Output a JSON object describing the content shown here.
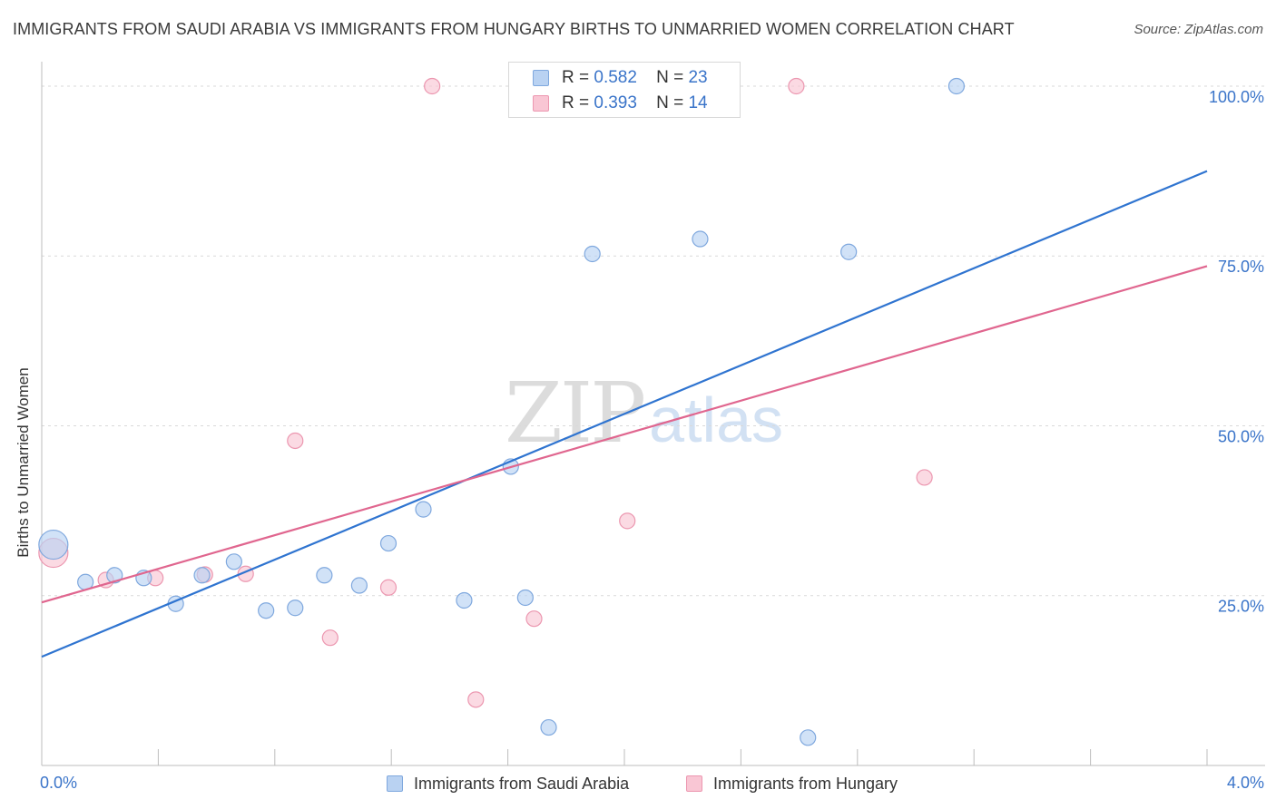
{
  "title": "IMMIGRANTS FROM SAUDI ARABIA VS IMMIGRANTS FROM HUNGARY BIRTHS TO UNMARRIED WOMEN CORRELATION CHART",
  "source": "Source: ZipAtlas.com",
  "watermark": {
    "zip": "ZIP",
    "atlas": "atlas"
  },
  "legend": {
    "rows": [
      {
        "r_label": "R = ",
        "r_value": "0.582",
        "n_label": "N = ",
        "n_value": "23"
      },
      {
        "r_label": "R = ",
        "r_value": "0.393",
        "n_label": "N = ",
        "n_value": "14"
      }
    ]
  },
  "colors": {
    "blue_fill": "#b9d2f2",
    "blue_stroke": "#7fa8de",
    "blue_line": "#2f74d0",
    "pink_fill": "#f9c6d4",
    "pink_stroke": "#ec97b0",
    "pink_line": "#e0668f",
    "tick_label": "#3a74c9",
    "grid": "#d9d9d9"
  },
  "chart_data": {
    "type": "scatter",
    "title": "IMMIGRANTS FROM SAUDI ARABIA VS IMMIGRANTS FROM HUNGARY BIRTHS TO UNMARRIED WOMEN CORRELATION CHART",
    "xlabel": "",
    "ylabel": "Births to Unmarried Women",
    "xlim": [
      0,
      4.0
    ],
    "ylim": [
      0,
      102
    ],
    "x_tick_labels": [
      "0.0%",
      "4.0%"
    ],
    "y_ticks": [
      25,
      50,
      75,
      100
    ],
    "y_tick_labels": [
      "25.0%",
      "50.0%",
      "75.0%",
      "100.0%"
    ],
    "grid": true,
    "legend_position": "top-center",
    "series": [
      {
        "name": "Immigrants from Saudi Arabia",
        "color": "#2f74d0",
        "points": [
          {
            "x": 0.04,
            "y": 32.5,
            "big": true
          },
          {
            "x": 0.15,
            "y": 27.0
          },
          {
            "x": 0.25,
            "y": 28.0
          },
          {
            "x": 0.35,
            "y": 27.6
          },
          {
            "x": 0.46,
            "y": 23.8
          },
          {
            "x": 0.55,
            "y": 28.0
          },
          {
            "x": 0.66,
            "y": 30.0
          },
          {
            "x": 0.77,
            "y": 22.8
          },
          {
            "x": 0.87,
            "y": 23.2
          },
          {
            "x": 0.97,
            "y": 28.0
          },
          {
            "x": 1.09,
            "y": 26.5
          },
          {
            "x": 1.19,
            "y": 32.7
          },
          {
            "x": 1.31,
            "y": 37.7
          },
          {
            "x": 1.45,
            "y": 24.3
          },
          {
            "x": 1.61,
            "y": 44.0
          },
          {
            "x": 1.66,
            "y": 24.7
          },
          {
            "x": 1.74,
            "y": 5.6
          },
          {
            "x": 1.89,
            "y": 75.3
          },
          {
            "x": 2.14,
            "y": 100.0
          },
          {
            "x": 2.26,
            "y": 77.5
          },
          {
            "x": 2.63,
            "y": 4.1
          },
          {
            "x": 2.77,
            "y": 75.6
          },
          {
            "x": 3.14,
            "y": 100.0
          }
        ],
        "trend": {
          "x0": 0.0,
          "y0": 16.0,
          "x1": 4.0,
          "y1": 87.5
        }
      },
      {
        "name": "Immigrants from Hungary",
        "color": "#e0668f",
        "points": [
          {
            "x": 0.04,
            "y": 31.3,
            "big": true
          },
          {
            "x": 0.22,
            "y": 27.3
          },
          {
            "x": 0.39,
            "y": 27.6
          },
          {
            "x": 0.56,
            "y": 28.1
          },
          {
            "x": 0.7,
            "y": 28.2
          },
          {
            "x": 0.87,
            "y": 47.8
          },
          {
            "x": 0.99,
            "y": 18.8
          },
          {
            "x": 1.19,
            "y": 26.2
          },
          {
            "x": 1.34,
            "y": 100.0
          },
          {
            "x": 1.49,
            "y": 9.7
          },
          {
            "x": 1.69,
            "y": 21.6
          },
          {
            "x": 2.01,
            "y": 36.0
          },
          {
            "x": 2.59,
            "y": 100.0
          },
          {
            "x": 3.03,
            "y": 42.4
          }
        ],
        "trend": {
          "x0": 0.0,
          "y0": 24.0,
          "x1": 4.0,
          "y1": 73.5
        }
      }
    ]
  }
}
